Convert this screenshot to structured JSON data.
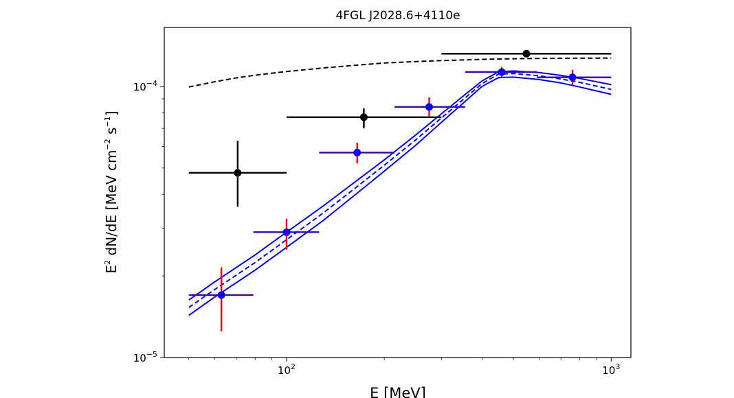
{
  "chart_data": {
    "type": "scatter",
    "title": "4FGL J2028.6+4110e",
    "xlabel": "E [MeV]",
    "ylabel": {
      "pre": "E",
      "sup1": "2",
      "mid": " dN/dE [MeV cm",
      "sup2": "−2",
      "mid2": " s",
      "sup3": "−1",
      "post": "]"
    },
    "x_scale": "log",
    "y_scale": "log",
    "xlim": [
      42,
      1150
    ],
    "ylim": [
      1e-05,
      0.000165
    ],
    "x_ticks": [
      {
        "value": 100,
        "base": "10",
        "exp": "2"
      },
      {
        "value": 1000,
        "base": "10",
        "exp": "3"
      }
    ],
    "y_ticks": [
      {
        "value": 1e-05,
        "base": "10",
        "exp": "−5"
      },
      {
        "value": 0.0001,
        "base": "10",
        "exp": "−4"
      }
    ],
    "series": [
      {
        "style": "black points with error bars",
        "color": "#000000",
        "points": [
          {
            "x": 70.7,
            "y": 4.8e-05,
            "xlo": 50,
            "xhi": 100,
            "ylo": 3.6e-05,
            "yhi": 6.3e-05
          },
          {
            "x": 173,
            "y": 7.7e-05,
            "xlo": 100,
            "xhi": 300,
            "ylo": 7e-05,
            "yhi": 8.3e-05
          },
          {
            "x": 548,
            "y": 0.000132,
            "xlo": 300,
            "xhi": 1000,
            "ylo": 0.000129,
            "yhi": 0.000135
          }
        ]
      },
      {
        "style": "blue points, purple x-bars, red y-bars",
        "color": "#0000ff",
        "xbar_color": "#3a00cc",
        "ybar_color": "#ff0000",
        "points": [
          {
            "x": 63,
            "y": 1.7e-05,
            "xlo": 50,
            "xhi": 79,
            "ylo": 1.25e-05,
            "yhi": 2.15e-05
          },
          {
            "x": 100,
            "y": 2.9e-05,
            "xlo": 79,
            "xhi": 126,
            "ylo": 2.5e-05,
            "yhi": 3.25e-05
          },
          {
            "x": 165,
            "y": 5.7e-05,
            "xlo": 126,
            "xhi": 215,
            "ylo": 5.2e-05,
            "yhi": 6.2e-05
          },
          {
            "x": 275,
            "y": 8.4e-05,
            "xlo": 215,
            "xhi": 355,
            "ylo": 7.75e-05,
            "yhi": 9.1e-05
          },
          {
            "x": 460,
            "y": 0.000113,
            "xlo": 355,
            "xhi": 590,
            "ylo": 0.000108,
            "yhi": 0.000118
          },
          {
            "x": 760,
            "y": 0.000108,
            "xlo": 590,
            "xhi": 1000,
            "ylo": 0.000101,
            "yhi": 0.000115
          }
        ]
      }
    ],
    "curves": [
      {
        "style": "black dashed",
        "color": "#000000",
        "dashed": true,
        "x": [
          50,
          60,
          70,
          80,
          100,
          130,
          160,
          200,
          250,
          300,
          350,
          400,
          500,
          600,
          700,
          800,
          1000
        ],
        "y": [
          9.95e-05,
          0.000104,
          0.0001075,
          0.00011,
          0.0001135,
          0.000117,
          0.0001195,
          0.000122,
          0.0001235,
          0.0001245,
          0.0001252,
          0.0001258,
          0.0001265,
          0.0001268,
          0.000127,
          0.0001271,
          0.0001272
        ]
      },
      {
        "style": "blue dashed (best fit)",
        "color": "#0000ff",
        "dashed": true,
        "x": [
          50,
          60,
          80,
          100,
          130,
          160,
          200,
          250,
          300,
          350,
          400,
          450,
          500,
          600,
          700,
          800,
          1000
        ],
        "y": [
          1.53e-05,
          1.78e-05,
          2.24e-05,
          2.72e-05,
          3.42e-05,
          4.15e-05,
          5.12e-05,
          6.35e-05,
          7.65e-05,
          8.95e-05,
          0.0001025,
          0.000111,
          0.0001115,
          0.0001095,
          0.0001065,
          0.0001035,
          9.75e-05
        ]
      },
      {
        "style": "blue solid (upper band)",
        "color": "#0000ff",
        "dashed": false,
        "x": [
          50,
          60,
          80,
          100,
          130,
          160,
          200,
          250,
          300,
          350,
          400,
          450,
          500,
          600,
          700,
          800,
          1000
        ],
        "y": [
          1.63e-05,
          1.9e-05,
          2.39e-05,
          2.9e-05,
          3.63e-05,
          4.38e-05,
          5.36e-05,
          6.62e-05,
          7.92e-05,
          9.21e-05,
          0.0001048,
          0.0001132,
          0.000114,
          0.0001125,
          0.0001098,
          0.000107,
          0.0001015
        ]
      },
      {
        "style": "blue solid (lower band)",
        "color": "#0000ff",
        "dashed": false,
        "x": [
          50,
          60,
          80,
          100,
          130,
          160,
          200,
          250,
          300,
          350,
          400,
          450,
          500,
          600,
          700,
          800,
          1000
        ],
        "y": [
          1.43e-05,
          1.67e-05,
          2.1e-05,
          2.55e-05,
          3.21e-05,
          3.92e-05,
          4.87e-05,
          6.07e-05,
          7.37e-05,
          8.68e-05,
          0.0001,
          0.0001078,
          0.0001082,
          0.000106,
          0.000103,
          9.95e-05,
          9.35e-05
        ]
      }
    ],
    "grid": false,
    "legend": "none"
  }
}
